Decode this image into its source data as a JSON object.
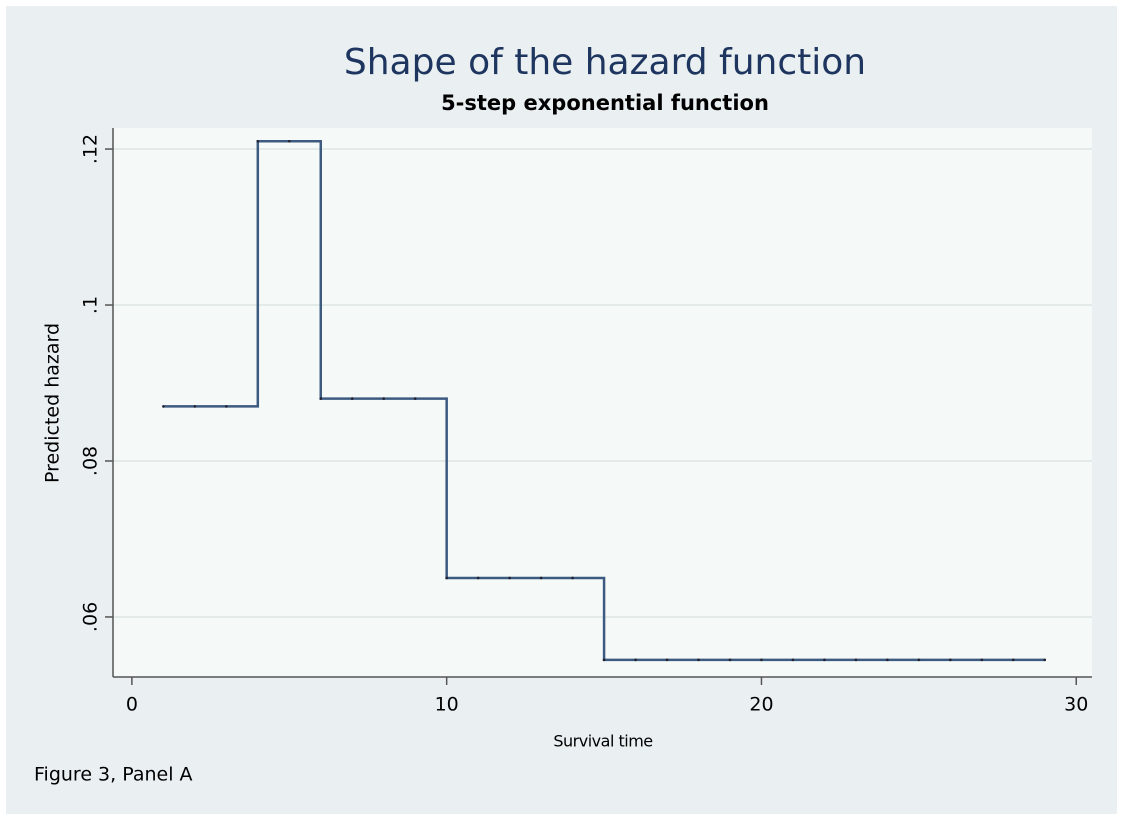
{
  "chart_data": {
    "type": "line",
    "step": "stairstep",
    "title": "Shape of the hazard function",
    "subtitle": "5-step exponential function",
    "x_label": "Survival time",
    "y_label": "Predicted hazard",
    "note": "Figure 3, Panel A",
    "x": [
      1,
      2,
      3,
      4,
      5,
      6,
      7,
      8,
      9,
      10,
      11,
      12,
      13,
      14,
      15,
      16,
      17,
      18,
      19,
      20,
      21,
      22,
      23,
      24,
      25,
      26,
      27,
      28,
      29
    ],
    "series": [
      {
        "name": "Predicted hazard",
        "color": "#3d5a80",
        "values": [
          0.087,
          0.087,
          0.087,
          0.121,
          0.121,
          0.088,
          0.088,
          0.088,
          0.088,
          0.065,
          0.065,
          0.065,
          0.065,
          0.065,
          0.0545,
          0.0545,
          0.0545,
          0.0545,
          0.0545,
          0.0545,
          0.0545,
          0.0545,
          0.0545,
          0.0545,
          0.0545,
          0.0545,
          0.0545,
          0.0545,
          0.0545
        ]
      }
    ],
    "xlim": [
      -0.6,
      30.5
    ],
    "xticks": [
      0,
      10,
      20,
      30
    ],
    "ylim": [
      0.0523,
      0.1227
    ],
    "yticks": [
      {
        "value": 0.06,
        "label": ".06"
      },
      {
        "value": 0.08,
        "label": ".08"
      },
      {
        "value": 0.1,
        "label": ".1"
      },
      {
        "value": 0.12,
        "label": ".12"
      }
    ],
    "grid": true
  }
}
